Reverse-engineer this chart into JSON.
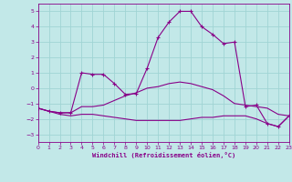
{
  "xlabel": "Windchill (Refroidissement éolien,°C)",
  "xlim": [
    0,
    23
  ],
  "ylim": [
    -3.5,
    5.5
  ],
  "yticks": [
    -3,
    -2,
    -1,
    0,
    1,
    2,
    3,
    4,
    5
  ],
  "xticks": [
    0,
    1,
    2,
    3,
    4,
    5,
    6,
    7,
    8,
    9,
    10,
    11,
    12,
    13,
    14,
    15,
    16,
    17,
    18,
    19,
    20,
    21,
    22,
    23
  ],
  "background_color": "#c2e8e8",
  "grid_color": "#a0d4d4",
  "line_color": "#880088",
  "series": [
    {
      "x": [
        0,
        1,
        2,
        3,
        4,
        5,
        6,
        7,
        8,
        9,
        10,
        11,
        12,
        13,
        14,
        15,
        16,
        17,
        18,
        19,
        20,
        21,
        22,
        23
      ],
      "y": [
        -1.3,
        -1.5,
        -1.7,
        -1.8,
        -1.7,
        -1.7,
        -1.8,
        -1.9,
        -2.0,
        -2.1,
        -2.1,
        -2.1,
        -2.1,
        -2.1,
        -2.0,
        -1.9,
        -1.9,
        -1.8,
        -1.8,
        -1.8,
        -2.0,
        -2.3,
        -2.5,
        -1.8
      ],
      "marker": null
    },
    {
      "x": [
        0,
        1,
        2,
        3,
        4,
        5,
        6,
        7,
        8,
        9,
        10,
        11,
        12,
        13,
        14,
        15,
        16,
        17,
        18,
        19,
        20,
        21,
        22,
        23
      ],
      "y": [
        -1.3,
        -1.5,
        -1.6,
        -1.6,
        -1.2,
        -1.2,
        -1.1,
        -0.8,
        -0.5,
        -0.3,
        0.0,
        0.1,
        0.3,
        0.4,
        0.3,
        0.1,
        -0.1,
        -0.5,
        -1.0,
        -1.1,
        -1.2,
        -1.3,
        -1.7,
        -1.8
      ],
      "marker": null
    },
    {
      "x": [
        0,
        1,
        2,
        3,
        4,
        5,
        6,
        7,
        8,
        9,
        10,
        11,
        12,
        13,
        14,
        15,
        16,
        17,
        18,
        19,
        20,
        21,
        22,
        23
      ],
      "y": [
        -1.3,
        -1.5,
        -1.6,
        -1.6,
        1.0,
        0.9,
        0.9,
        0.3,
        -0.4,
        -0.35,
        1.3,
        3.3,
        4.3,
        5.0,
        5.0,
        4.0,
        3.5,
        2.9,
        3.0,
        -1.2,
        -1.1,
        -2.3,
        -2.5,
        -1.8
      ],
      "marker": "+"
    }
  ]
}
